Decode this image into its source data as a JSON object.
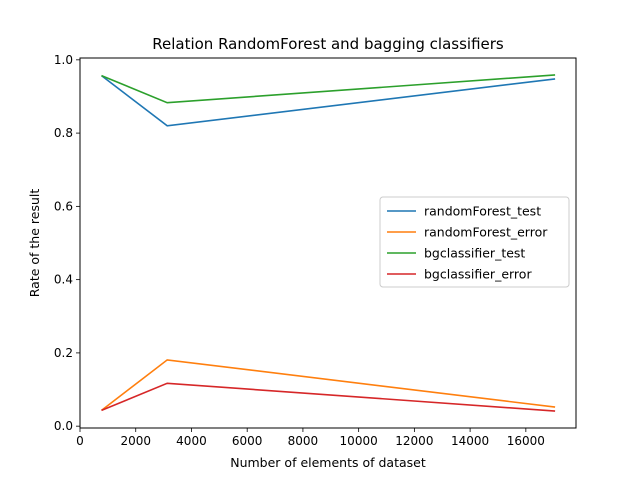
{
  "chart_data": {
    "type": "line",
    "title": "Relation RandomForest and bagging classifiers",
    "xlabel": "Number of elements of dataset",
    "ylabel": "Rate of the result",
    "xlim": [
      0,
      17800
    ],
    "ylim": [
      -0.005,
      1.005
    ],
    "xticks": [
      0,
      2000,
      4000,
      6000,
      8000,
      10000,
      12000,
      14000,
      16000
    ],
    "yticks": [
      0.0,
      0.2,
      0.4,
      0.6,
      0.8,
      1.0
    ],
    "xtick_labels": [
      "0",
      "2000",
      "4000",
      "6000",
      "8000",
      "10000",
      "12000",
      "14000",
      "16000"
    ],
    "ytick_labels": [
      "0.0",
      "0.2",
      "0.4",
      "0.6",
      "0.8",
      "1.0"
    ],
    "grid": false,
    "legend_position": "center-right",
    "x": [
      770,
      3130,
      17050
    ],
    "series": [
      {
        "name": "randomForest_test",
        "color": "#1f77b4",
        "values": [
          0.957,
          0.82,
          0.948
        ]
      },
      {
        "name": "randomForest_error",
        "color": "#ff7f0e",
        "values": [
          0.043,
          0.181,
          0.052
        ]
      },
      {
        "name": "bgclassifier_test",
        "color": "#2ca02c",
        "values": [
          0.957,
          0.883,
          0.959
        ]
      },
      {
        "name": "bgclassifier_error",
        "color": "#d62728",
        "values": [
          0.043,
          0.117,
          0.041
        ]
      }
    ]
  }
}
